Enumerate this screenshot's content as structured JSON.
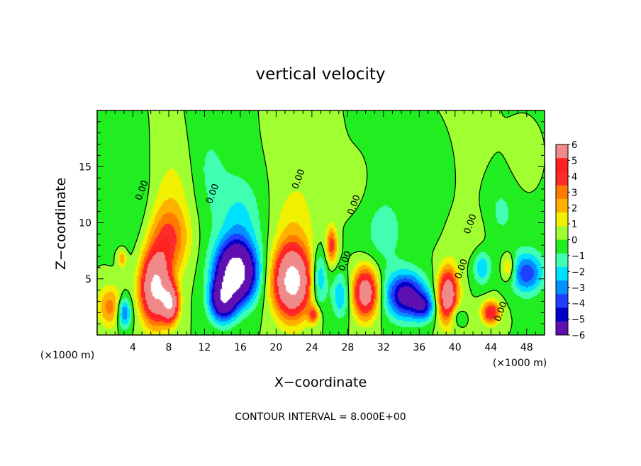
{
  "chart_data": {
    "type": "heatmap",
    "title": "vertical velocity",
    "xlabel": "X−coordinate",
    "ylabel": "Z−coordinate",
    "x_unit_left": "(×1000 m)",
    "x_unit_right": "(×1000 m)",
    "xlim": [
      0,
      50
    ],
    "ylim": [
      0,
      20
    ],
    "x_ticks": [
      4,
      8,
      12,
      16,
      20,
      24,
      28,
      32,
      36,
      40,
      44,
      48
    ],
    "y_ticks": [
      5,
      10,
      15
    ],
    "colorbar": {
      "min": -6,
      "max": 6,
      "ticks": [
        6,
        5,
        4,
        3,
        2,
        1,
        0,
        -1,
        -2,
        -3,
        -4,
        -5,
        -6
      ],
      "tick_labels": [
        "6",
        "5",
        "4",
        "3",
        "2",
        "1",
        "0",
        "−1",
        "−2",
        "−3",
        "−4",
        "−5",
        "−6"
      ],
      "colors": [
        "#f08a8a",
        "#ff2020",
        "#ff2a2a",
        "#ff7a00",
        "#ffb000",
        "#f0f000",
        "#a0ff30",
        "#20ee20",
        "#40ffb0",
        "#00e0ff",
        "#0090ff",
        "#2040ff",
        "#0000c8",
        "#6010b0"
      ]
    },
    "contour_interval_label": "CONTOUR INTERVAL = 8.000E+00",
    "contour_labels": [
      "0.00",
      "0.00",
      "0.00",
      "0.00",
      "0.00",
      "0.00",
      "0.00",
      "0.00"
    ],
    "cells": [
      {
        "x": 1.5,
        "z": 2.5,
        "w": 3.0,
        "sx": 1.4,
        "sz": 1.8
      },
      {
        "x": 3.0,
        "z": 2.0,
        "w": -4.0,
        "sx": 0.8,
        "sz": 1.4
      },
      {
        "x": 2.8,
        "z": 6.8,
        "w": 2.5,
        "sx": 0.5,
        "sz": 0.8
      },
      {
        "x": 6.5,
        "z": 4.2,
        "w": 9.0,
        "sx": 1.6,
        "sz": 3.0
      },
      {
        "x": 8.2,
        "z": 2.8,
        "w": 7.0,
        "sx": 0.9,
        "sz": 1.6
      },
      {
        "x": 8.0,
        "z": 8.5,
        "w": 3.5,
        "sx": 2.2,
        "sz": 3.0
      },
      {
        "x": 8.5,
        "z": 13.0,
        "w": 1.0,
        "sx": 2.5,
        "sz": 4.0
      },
      {
        "x": 4.0,
        "z": 12.0,
        "w": -1.2,
        "sx": 2.5,
        "sz": 5.0
      },
      {
        "x": 15.5,
        "z": 5.5,
        "w": -10.0,
        "sx": 2.2,
        "sz": 2.6
      },
      {
        "x": 14.0,
        "z": 3.0,
        "w": -6.0,
        "sx": 1.4,
        "sz": 1.8
      },
      {
        "x": 16.0,
        "z": 10.0,
        "w": -1.8,
        "sx": 2.5,
        "sz": 4.0
      },
      {
        "x": 12.5,
        "z": 15.0,
        "w": -0.8,
        "sx": 2.0,
        "sz": 4.0
      },
      {
        "x": 21.8,
        "z": 4.8,
        "w": 10.0,
        "sx": 2.0,
        "sz": 3.0
      },
      {
        "x": 22.0,
        "z": 10.0,
        "w": 1.0,
        "sx": 2.2,
        "sz": 3.0
      },
      {
        "x": 23.5,
        "z": 16.0,
        "w": 0.6,
        "sx": 2.5,
        "sz": 3.0
      },
      {
        "x": 24.8,
        "z": 5.0,
        "w": -3.0,
        "sx": 0.9,
        "sz": 2.5
      },
      {
        "x": 26.2,
        "z": 8.0,
        "w": 4.0,
        "sx": 0.6,
        "sz": 1.6
      },
      {
        "x": 24.2,
        "z": 1.8,
        "w": 3.5,
        "sx": 0.6,
        "sz": 0.8
      },
      {
        "x": 27.2,
        "z": 3.5,
        "w": -2.5,
        "sx": 1.0,
        "sz": 2.0
      },
      {
        "x": 30.0,
        "z": 3.8,
        "w": 7.0,
        "sx": 1.4,
        "sz": 2.2
      },
      {
        "x": 29.0,
        "z": 13.0,
        "w": 0.5,
        "sx": 2.0,
        "sz": 3.0
      },
      {
        "x": 32.0,
        "z": 9.0,
        "w": -1.0,
        "sx": 2.5,
        "sz": 3.5
      },
      {
        "x": 34.5,
        "z": 3.5,
        "w": -6.0,
        "sx": 2.2,
        "sz": 2.0
      },
      {
        "x": 36.5,
        "z": 2.5,
        "w": -3.5,
        "sx": 1.2,
        "sz": 1.2
      },
      {
        "x": 37.5,
        "z": 13.0,
        "w": -0.8,
        "sx": 2.5,
        "sz": 4.0
      },
      {
        "x": 39.2,
        "z": 3.5,
        "w": 7.5,
        "sx": 1.1,
        "sz": 2.3
      },
      {
        "x": 41.5,
        "z": 9.0,
        "w": 0.6,
        "sx": 2.0,
        "sz": 2.0
      },
      {
        "x": 40.0,
        "z": 1.8,
        "w": -2.0,
        "sx": 0.8,
        "sz": 1.0
      },
      {
        "x": 44.0,
        "z": 2.0,
        "w": 5.0,
        "sx": 1.0,
        "sz": 1.0
      },
      {
        "x": 43.0,
        "z": 6.0,
        "w": -2.5,
        "sx": 1.0,
        "sz": 1.5
      },
      {
        "x": 46.0,
        "z": 6.0,
        "w": 2.5,
        "sx": 0.7,
        "sz": 1.2
      },
      {
        "x": 48.0,
        "z": 5.5,
        "w": -4.0,
        "sx": 1.8,
        "sz": 1.8
      },
      {
        "x": 45.0,
        "z": 11.0,
        "w": -1.0,
        "sx": 2.0,
        "sz": 3.0
      },
      {
        "x": 48.0,
        "z": 15.0,
        "w": 0.6,
        "sx": 2.0,
        "sz": 3.0
      }
    ]
  }
}
